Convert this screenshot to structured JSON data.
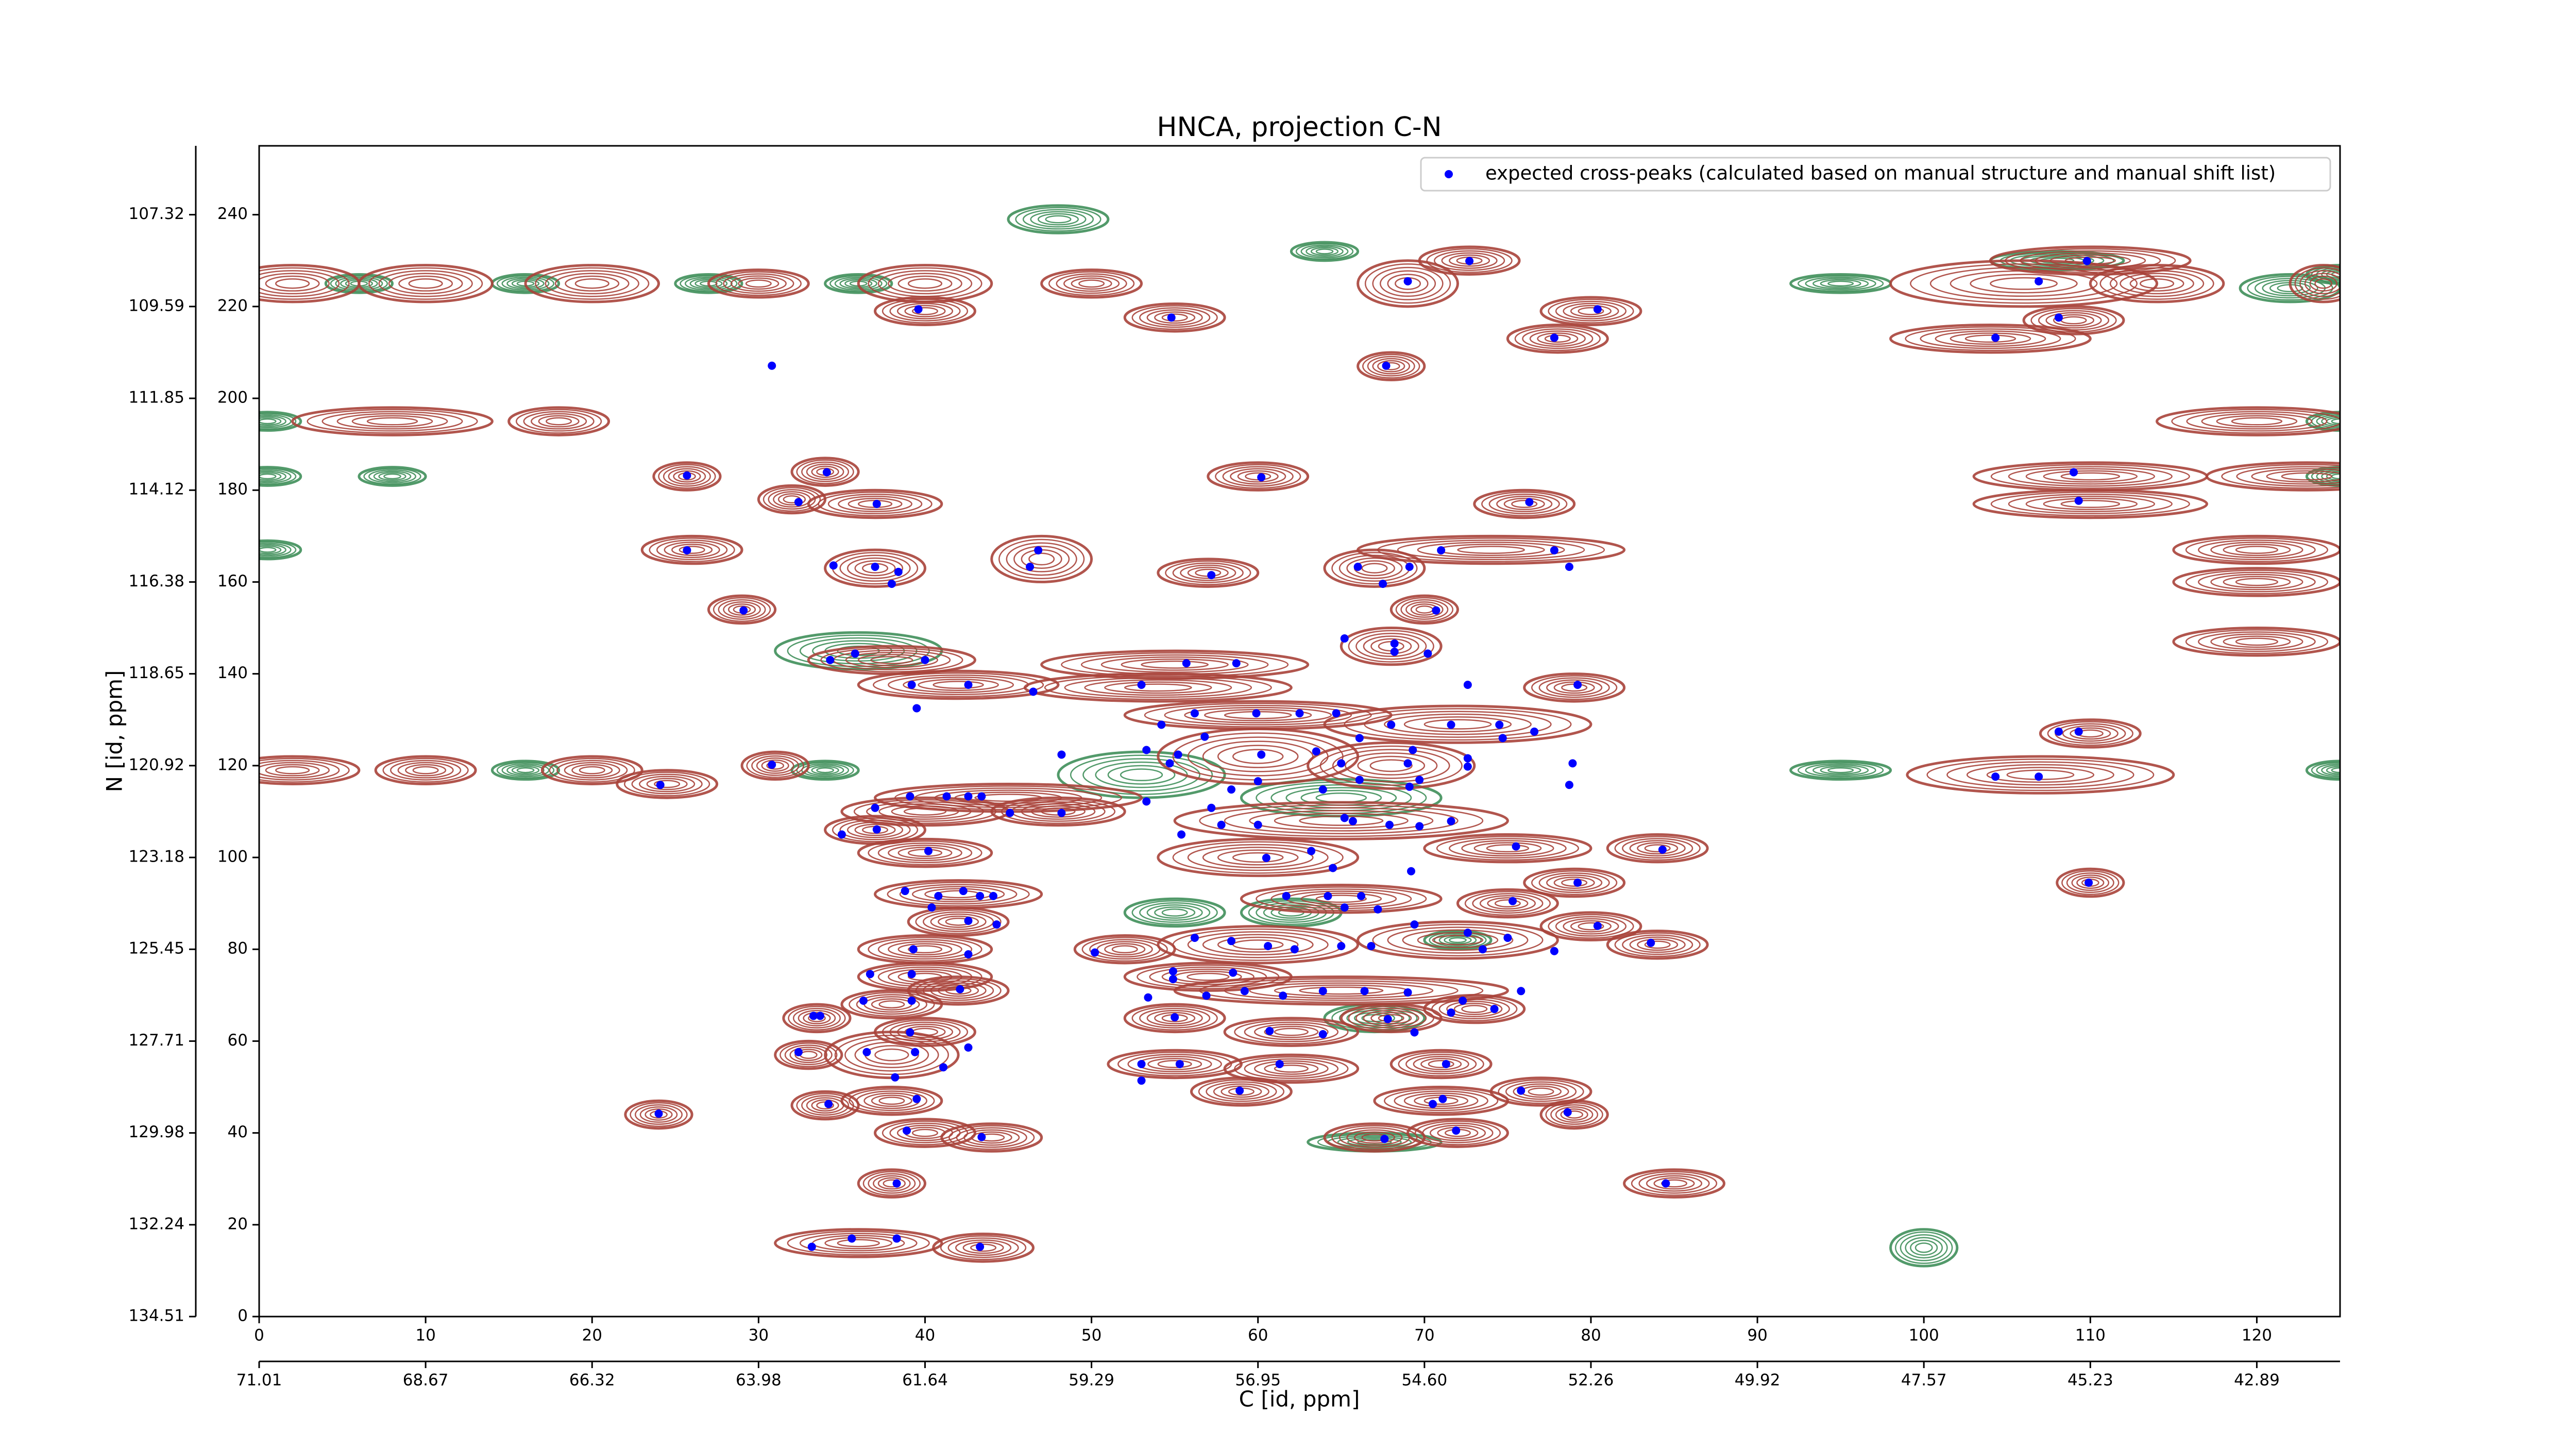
{
  "chart_data": {
    "type": "scatter",
    "title": "HNCA, projection C-N",
    "xlabel": "C [id, ppm]",
    "ylabel": "N [id, ppm]",
    "xlim": [
      0,
      125
    ],
    "ylim": [
      0,
      255
    ],
    "xticks": [
      0,
      10,
      20,
      30,
      40,
      50,
      60,
      70,
      80,
      90,
      100,
      110,
      120
    ],
    "yticks": [
      0,
      20,
      40,
      60,
      80,
      100,
      120,
      140,
      160,
      180,
      200,
      220,
      240
    ],
    "x2ticks": [
      {
        "value": 0,
        "label": "71.01"
      },
      {
        "value": 10,
        "label": "68.67"
      },
      {
        "value": 20,
        "label": "66.32"
      },
      {
        "value": 30,
        "label": "63.98"
      },
      {
        "value": 40,
        "label": "61.64"
      },
      {
        "value": 50,
        "label": "59.29"
      },
      {
        "value": 60,
        "label": "56.95"
      },
      {
        "value": 70,
        "label": "54.60"
      },
      {
        "value": 80,
        "label": "52.26"
      },
      {
        "value": 90,
        "label": "49.92"
      },
      {
        "value": 100,
        "label": "47.57"
      },
      {
        "value": 110,
        "label": "45.23"
      },
      {
        "value": 120,
        "label": "42.89"
      }
    ],
    "y2ticks": [
      {
        "value": 0,
        "label": "134.51"
      },
      {
        "value": 20,
        "label": "132.24"
      },
      {
        "value": 40,
        "label": "129.98"
      },
      {
        "value": 60,
        "label": "127.71"
      },
      {
        "value": 80,
        "label": "125.45"
      },
      {
        "value": 100,
        "label": "123.18"
      },
      {
        "value": 120,
        "label": "120.92"
      },
      {
        "value": 140,
        "label": "118.65"
      },
      {
        "value": 160,
        "label": "116.38"
      },
      {
        "value": 180,
        "label": "114.12"
      },
      {
        "value": 200,
        "label": "111.85"
      },
      {
        "value": 220,
        "label": "109.59"
      },
      {
        "value": 240,
        "label": "107.32"
      }
    ],
    "legend": "upper right",
    "series": [
      {
        "name": "expected cross-peaks (calculated based on manual structure and manual shift list)",
        "color": "#0000ff",
        "x": [
          72.7,
          69.0,
          109.8,
          106.9,
          108.1,
          104.3,
          80.4,
          77.8,
          39.6,
          54.8,
          67.7,
          30.8,
          25.7,
          34.1,
          60.2,
          32.4,
          37.1,
          109.0,
          109.3,
          76.3,
          25.7,
          46.8,
          46.3,
          34.5,
          37.0,
          38.4,
          38.0,
          57.2,
          66.0,
          69.1,
          71.0,
          77.8,
          78.7,
          67.5,
          70.7,
          29.1,
          65.2,
          68.2,
          70.2,
          68.2,
          34.3,
          35.8,
          40.0,
          55.7,
          58.7,
          42.6,
          39.2,
          46.5,
          53.0,
          79.2,
          39.5,
          72.6,
          56.2,
          59.9,
          62.5,
          64.7,
          68.0,
          71.6,
          74.5,
          76.6,
          108.1,
          109.3,
          54.2,
          56.8,
          53.3,
          55.2,
          60.2,
          63.5,
          65.0,
          69.0,
          72.6,
          74.7,
          48.2,
          30.8,
          24.1,
          54.7,
          66.1,
          69.7,
          72.6,
          78.9,
          78.7,
          104.3,
          106.9,
          39.1,
          41.3,
          42.6,
          43.4,
          45.1,
          48.2,
          37.0,
          53.3,
          57.2,
          60.0,
          65.7,
          67.9,
          69.7,
          71.6,
          35.0,
          37.1,
          40.2,
          55.4,
          57.8,
          60.5,
          63.2,
          64.5,
          69.2,
          75.5,
          84.3,
          79.2,
          109.9,
          38.8,
          40.8,
          42.3,
          43.3,
          44.1,
          40.4,
          42.6,
          44.3,
          61.7,
          64.2,
          66.2,
          65.2,
          67.2,
          75.3,
          69.4,
          80.4,
          56.2,
          58.4,
          60.6,
          62.2,
          65.0,
          66.8,
          72.6,
          73.5,
          75.0,
          77.8,
          83.6,
          39.3,
          42.6,
          50.2,
          54.9,
          54.9,
          58.5,
          36.7,
          39.2,
          42.1,
          75.8,
          53.4,
          56.9,
          59.2,
          61.5,
          63.9,
          66.4,
          69.0,
          72.3,
          74.2,
          33.3,
          33.7,
          36.3,
          39.2,
          55.0,
          67.8,
          71.6,
          60.7,
          63.9,
          69.4,
          39.1,
          42.6,
          32.4,
          36.5,
          39.4,
          41.1,
          53.0,
          55.3,
          61.3,
          71.3,
          38.2,
          53.0,
          58.9,
          71.1,
          75.8,
          39.5,
          34.2,
          70.5,
          78.6,
          24.0,
          38.9,
          43.4,
          67.6,
          71.9,
          38.3,
          84.5,
          33.2,
          35.6,
          38.3,
          43.3,
          69.1,
          65.2,
          58.4,
          60.0,
          63.9,
          66.1,
          69.3
        ],
        "values": [
          229.9,
          225.5,
          229.9,
          225.5,
          217.6,
          213.2,
          219.4,
          213.2,
          219.4,
          217.6,
          207.1,
          207.1,
          183.2,
          183.9,
          182.8,
          177.4,
          177.0,
          183.9,
          177.7,
          177.4,
          166.9,
          166.9,
          163.3,
          163.6,
          163.3,
          162.2,
          159.6,
          161.5,
          163.3,
          163.3,
          166.9,
          166.9,
          163.3,
          159.6,
          153.8,
          153.8,
          147.7,
          146.6,
          144.4,
          144.8,
          143.0,
          144.4,
          143.0,
          142.3,
          142.3,
          137.6,
          137.6,
          136.1,
          137.6,
          137.6,
          132.5,
          137.6,
          131.4,
          131.4,
          131.4,
          131.4,
          128.9,
          128.9,
          128.9,
          127.4,
          127.4,
          127.4,
          128.9,
          126.3,
          123.4,
          122.4,
          122.4,
          123.1,
          120.5,
          120.5,
          121.6,
          126.0,
          122.4,
          120.2,
          115.8,
          120.5,
          116.9,
          116.9,
          119.8,
          120.5,
          115.8,
          117.6,
          117.6,
          113.3,
          113.3,
          113.3,
          113.3,
          109.7,
          109.7,
          110.8,
          112.2,
          110.8,
          107.1,
          107.9,
          107.1,
          106.8,
          107.9,
          105.0,
          106.1,
          101.4,
          105.0,
          107.1,
          99.9,
          101.4,
          97.7,
          97.0,
          102.4,
          101.7,
          94.5,
          94.5,
          92.7,
          91.6,
          92.7,
          91.6,
          91.6,
          89.1,
          86.2,
          85.4,
          91.6,
          91.6,
          91.6,
          89.1,
          88.7,
          90.5,
          85.4,
          85.1,
          82.5,
          81.8,
          80.7,
          80.0,
          80.7,
          80.7,
          83.6,
          80.0,
          82.5,
          79.6,
          81.4,
          80.0,
          78.9,
          79.3,
          75.2,
          73.5,
          74.9,
          74.6,
          74.6,
          71.3,
          70.9,
          69.5,
          69.9,
          70.9,
          69.9,
          70.9,
          70.9,
          70.6,
          68.8,
          67.0,
          65.5,
          65.5,
          68.8,
          68.8,
          65.2,
          64.8,
          66.2,
          62.2,
          61.5,
          61.9,
          61.9,
          58.6,
          57.6,
          57.6,
          57.6,
          54.3,
          55.0,
          55.0,
          55.0,
          55.0,
          52.1,
          51.4,
          49.2,
          47.4,
          49.2,
          47.4,
          46.3,
          46.3,
          44.5,
          44.2,
          40.5,
          39.1,
          38.7,
          40.5,
          29.0,
          29.0,
          15.2,
          17.0,
          17.0,
          15.2,
          115.4,
          108.6,
          114.8,
          116.6,
          114.8,
          126.0,
          123.4
        ]
      }
    ],
    "contours": {
      "positive": {
        "color": "#a8423a",
        "x": [
          2,
          10,
          20,
          30,
          40,
          50,
          69,
          106,
          114,
          124,
          72.7,
          110,
          40,
          55,
          80,
          78,
          104,
          109,
          68,
          8,
          18,
          120,
          123,
          110,
          110,
          120,
          120,
          120,
          25.7,
          34,
          60,
          37,
          32,
          76,
          26,
          47,
          37,
          57,
          67,
          74,
          70,
          29,
          68,
          38,
          55,
          42,
          54,
          79,
          60,
          72,
          110,
          107,
          2,
          10,
          20,
          24.5,
          31,
          60,
          68,
          45,
          40,
          65,
          37,
          40,
          48,
          60,
          75,
          84,
          79,
          110,
          42,
          42,
          65,
          75,
          80,
          60,
          72,
          84,
          40,
          52,
          57,
          40,
          65,
          42,
          33.5,
          38,
          55,
          68,
          73,
          62,
          40,
          38,
          33,
          55,
          62,
          71,
          59,
          71,
          77,
          79,
          34,
          38,
          24,
          40,
          44,
          67,
          72,
          38,
          85,
          36,
          43.5
        ],
        "y": [
          225,
          225,
          225,
          225,
          225,
          225,
          225,
          225,
          225,
          225,
          230,
          230,
          219,
          217.6,
          219,
          213,
          213,
          217,
          207,
          195,
          195,
          195,
          183,
          183,
          177,
          167,
          160,
          147,
          183,
          184,
          183,
          177,
          178,
          177,
          167,
          165,
          163,
          162,
          163,
          167,
          154,
          154,
          146,
          143,
          142,
          137.6,
          137,
          137,
          131,
          129,
          127,
          118,
          119,
          119,
          119,
          116,
          120,
          122,
          120,
          113,
          110,
          108,
          106,
          101,
          110,
          100,
          102,
          102,
          94.5,
          94.5,
          92,
          86,
          91,
          90,
          85,
          81,
          82,
          81,
          80,
          80,
          74,
          74,
          71,
          71,
          65,
          68,
          65,
          65,
          67,
          62,
          62,
          57,
          57,
          55,
          54,
          55,
          49,
          47,
          49,
          44,
          46,
          47,
          44,
          40,
          39,
          39,
          40,
          29,
          29,
          16,
          15
        ],
        "rx": [
          4,
          4,
          4,
          3,
          4,
          3,
          3,
          8,
          4,
          2,
          3,
          6,
          3,
          3,
          3,
          3,
          6,
          3,
          2,
          6,
          3,
          6,
          6,
          7,
          7,
          5,
          5,
          5,
          2,
          2,
          3,
          4,
          2,
          3,
          3,
          3,
          3,
          3,
          3,
          8,
          2,
          2,
          3,
          5,
          8,
          6,
          8,
          3,
          8,
          8,
          3,
          8,
          4,
          3,
          3,
          3,
          2,
          6,
          5,
          8,
          5,
          10,
          3,
          4,
          4,
          6,
          5,
          3,
          3,
          2,
          5,
          3,
          6,
          3,
          3,
          6,
          6,
          3,
          4,
          3,
          5,
          4,
          10,
          3,
          2,
          3,
          3,
          3,
          3,
          4,
          3,
          4,
          2,
          4,
          4,
          3,
          3,
          4,
          3,
          2,
          2,
          3,
          2,
          3,
          3,
          3,
          3,
          2,
          3,
          5,
          3
        ],
        "ry": [
          4,
          4,
          4,
          3,
          4,
          3,
          5,
          5,
          4,
          4,
          3,
          3,
          3,
          3,
          3,
          3,
          3,
          3,
          3,
          3,
          3,
          3,
          3,
          3,
          3,
          3,
          3,
          3,
          3,
          3,
          3,
          3,
          3,
          3,
          3,
          5,
          4,
          3,
          4,
          3,
          3,
          3,
          4,
          3,
          3,
          3,
          3,
          3,
          3,
          4,
          3,
          4,
          3,
          3,
          3,
          3,
          3,
          6,
          5,
          3,
          3,
          4,
          3,
          3,
          3,
          4,
          3,
          3,
          3,
          3,
          3,
          3,
          3,
          3,
          3,
          4,
          4,
          3,
          3,
          3,
          3,
          3,
          3,
          3,
          3,
          3,
          3,
          3,
          3,
          3,
          3,
          5,
          3,
          3,
          3,
          3,
          3,
          3,
          3,
          3,
          3,
          3,
          3,
          3,
          3,
          3,
          3,
          3,
          3,
          3,
          3
        ]
      },
      "negative": {
        "color": "#3f8f5a",
        "x": [
          6,
          16,
          27,
          36,
          95,
          122,
          0.5,
          125,
          0.5,
          125,
          8,
          0.5,
          36,
          16,
          34,
          95,
          125,
          53,
          65,
          55,
          62,
          67,
          72,
          67,
          100,
          48,
          64,
          108,
          125
        ],
        "y": [
          225,
          225,
          225,
          225,
          225,
          224,
          195,
          195,
          183,
          183,
          183,
          167,
          145,
          119,
          119,
          119,
          119,
          118,
          113,
          88,
          88,
          65,
          82,
          38,
          15,
          239,
          232,
          230,
          227
        ],
        "rx": [
          2,
          2,
          2,
          2,
          3,
          3,
          2,
          2,
          2,
          2,
          2,
          2,
          5,
          2,
          2,
          3,
          2,
          5,
          6,
          3,
          3,
          3,
          2,
          4,
          2,
          3,
          2,
          4,
          2
        ],
        "ry": [
          2,
          2,
          2,
          2,
          2,
          3,
          2,
          2,
          2,
          2,
          2,
          2,
          4,
          2,
          2,
          2,
          2,
          5,
          4,
          3,
          3,
          3,
          2,
          2,
          4,
          3,
          2,
          2,
          2
        ]
      }
    }
  }
}
